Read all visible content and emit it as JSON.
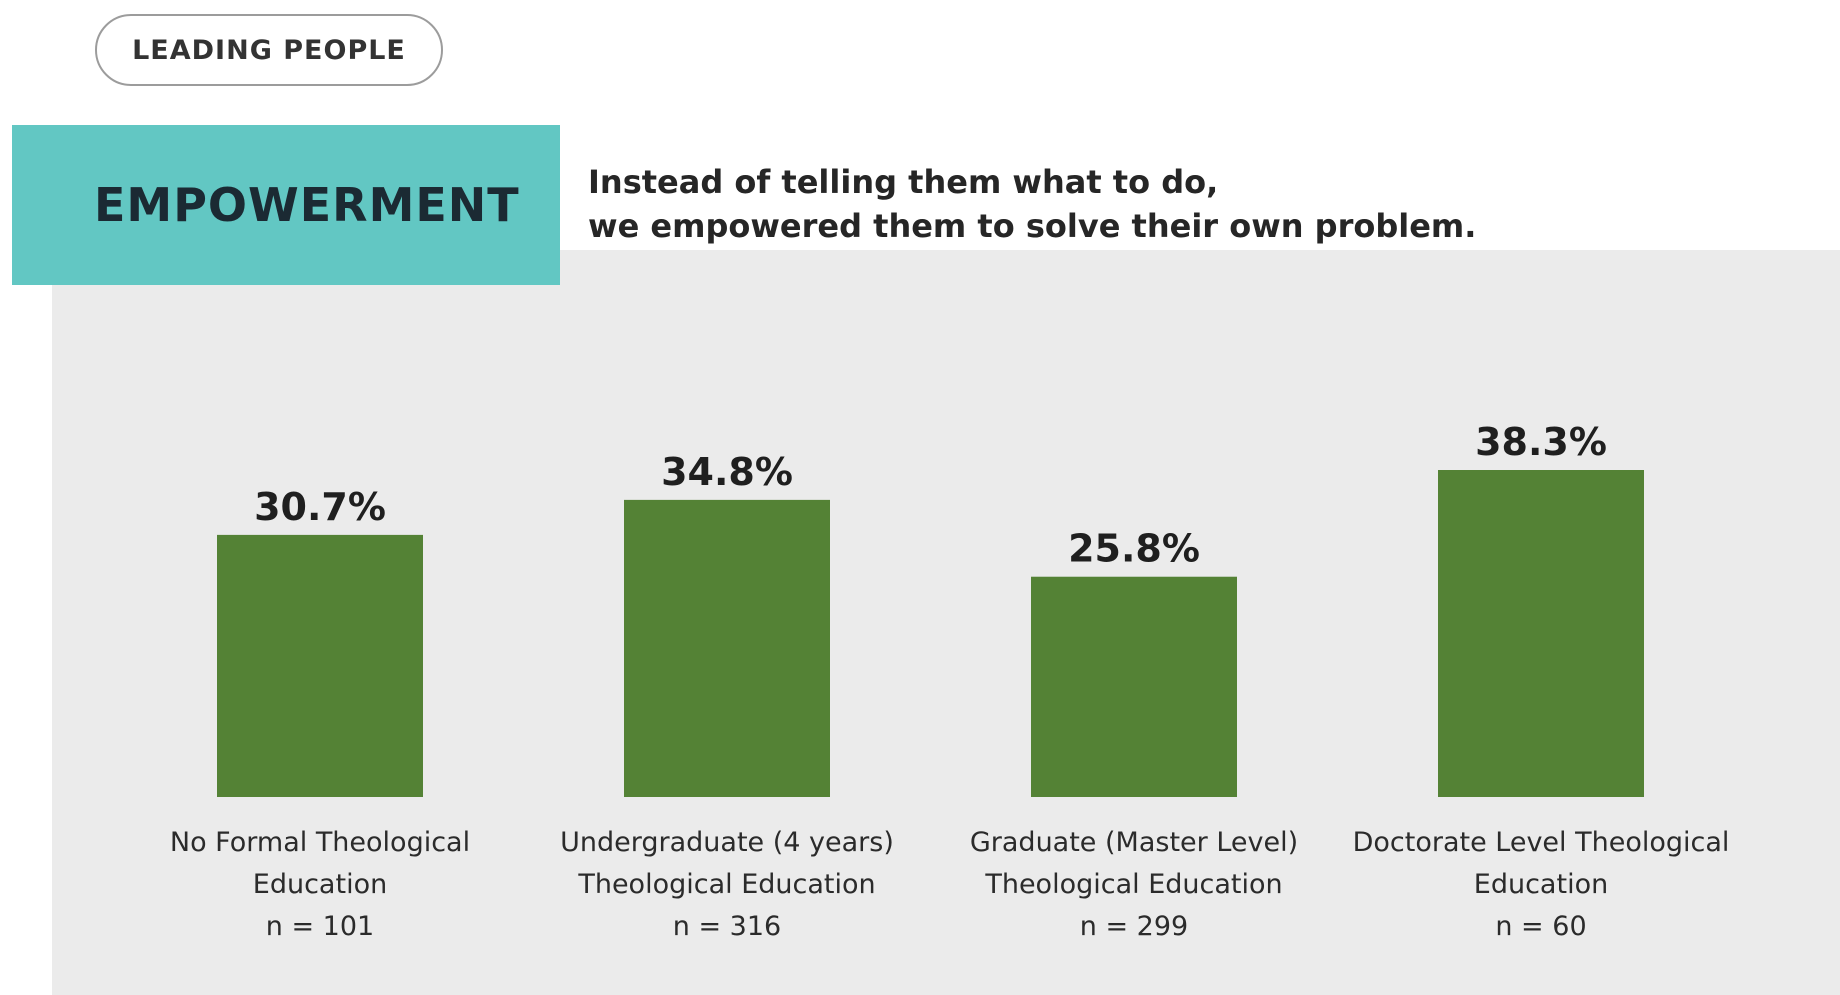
{
  "header": {
    "pill_label": "LEADING PEOPLE"
  },
  "banner": {
    "title": "EMPOWERMENT",
    "tagline_line1": "Instead of telling them what to do,",
    "tagline_line2": "we empowered them to solve their own problem."
  },
  "colors": {
    "bar": "#548235",
    "banner": "#62c7c3",
    "panel": "#ebebeb"
  },
  "chart_data": {
    "type": "bar",
    "title": "",
    "xlabel": "",
    "ylabel": "",
    "ylim": [
      0,
      38.3
    ],
    "grid": false,
    "categories": [
      {
        "line1": "No Formal Theological",
        "line2": "Education",
        "n": "n = 101"
      },
      {
        "line1": "Undergraduate (4 years)",
        "line2": "Theological Education",
        "n": "n = 316"
      },
      {
        "line1": "Graduate (Master Level)",
        "line2": "Theological Education",
        "n": "n = 299"
      },
      {
        "line1": "Doctorate Level Theological",
        "line2": "Education",
        "n": "n = 60"
      }
    ],
    "values": [
      30.7,
      34.8,
      25.8,
      38.3
    ],
    "value_labels": [
      "30.7%",
      "34.8%",
      "25.8%",
      "38.3%"
    ]
  }
}
